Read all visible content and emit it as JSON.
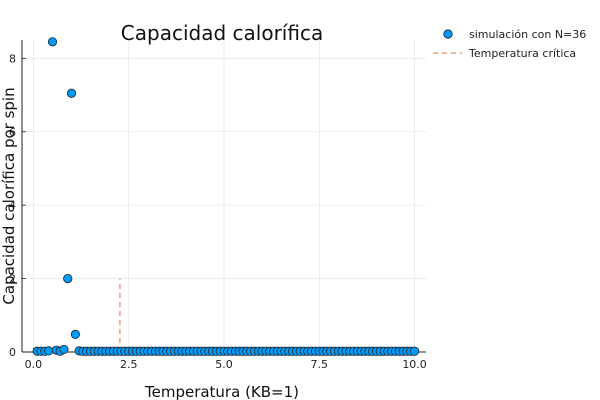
{
  "chart_data": {
    "type": "scatter",
    "title": "Capacidad calorífica",
    "xlabel": "Temperatura (KB=1)",
    "ylabel": "Capacidad calorífica por spin",
    "xlim": [
      -0.3,
      10.3
    ],
    "ylim": [
      0,
      8.5
    ],
    "xticks": [
      0,
      2.5,
      5,
      7.5,
      10
    ],
    "xtick_labels": [
      "0.0",
      "2.5",
      "5.0",
      "7.5",
      "10.0"
    ],
    "yticks": [
      0,
      2,
      4,
      6,
      8
    ],
    "ytick_labels": [
      "0",
      "2",
      "4",
      "6",
      "8"
    ],
    "grid": true,
    "legend_position": "outside-top-right",
    "series": [
      {
        "name": "simulación con N=36",
        "kind": "scatter",
        "color": "#009af9",
        "x": [
          0.1,
          0.2,
          0.3,
          0.4,
          0.5,
          0.6,
          0.7,
          0.8,
          0.9,
          1.0,
          1.1,
          1.2,
          1.3,
          1.4,
          1.5,
          1.6,
          1.7,
          1.8,
          1.9,
          2.0,
          2.1,
          2.2,
          2.3,
          2.4,
          2.5,
          2.6,
          2.7,
          2.8,
          2.9,
          3.0,
          3.1,
          3.2,
          3.3,
          3.4,
          3.5,
          3.6,
          3.7,
          3.8,
          3.9,
          4.0,
          4.1,
          4.2,
          4.3,
          4.4,
          4.5,
          4.6,
          4.7,
          4.8,
          4.9,
          5.0,
          5.1,
          5.2,
          5.3,
          5.4,
          5.5,
          5.6,
          5.7,
          5.8,
          5.9,
          6.0,
          6.1,
          6.2,
          6.3,
          6.4,
          6.5,
          6.6,
          6.7,
          6.8,
          6.9,
          7.0,
          7.1,
          7.2,
          7.3,
          7.4,
          7.5,
          7.6,
          7.7,
          7.8,
          7.9,
          8.0,
          8.1,
          8.2,
          8.3,
          8.4,
          8.5,
          8.6,
          8.7,
          8.8,
          8.9,
          9.0,
          9.1,
          9.2,
          9.3,
          9.4,
          9.5,
          9.6,
          9.7,
          9.8,
          9.9,
          10.0
        ],
        "y": [
          0.02,
          0.02,
          0.02,
          0.03,
          8.45,
          0.05,
          0.02,
          0.07,
          2.0,
          7.05,
          0.48,
          0.03,
          0.02,
          0.02,
          0.02,
          0.02,
          0.02,
          0.02,
          0.02,
          0.02,
          0.02,
          0.02,
          0.02,
          0.02,
          0.02,
          0.02,
          0.02,
          0.02,
          0.02,
          0.02,
          0.02,
          0.02,
          0.02,
          0.02,
          0.02,
          0.02,
          0.02,
          0.02,
          0.02,
          0.02,
          0.02,
          0.02,
          0.02,
          0.02,
          0.02,
          0.02,
          0.02,
          0.02,
          0.02,
          0.02,
          0.02,
          0.02,
          0.02,
          0.02,
          0.02,
          0.02,
          0.02,
          0.02,
          0.02,
          0.02,
          0.02,
          0.02,
          0.02,
          0.02,
          0.02,
          0.02,
          0.02,
          0.02,
          0.02,
          0.02,
          0.02,
          0.02,
          0.02,
          0.02,
          0.02,
          0.02,
          0.02,
          0.02,
          0.02,
          0.02,
          0.02,
          0.02,
          0.02,
          0.02,
          0.02,
          0.02,
          0.02,
          0.02,
          0.02,
          0.02,
          0.02,
          0.02,
          0.02,
          0.02,
          0.02,
          0.02,
          0.02,
          0.02,
          0.02,
          0.02
        ]
      },
      {
        "name": "Temperatura crítica",
        "kind": "dashed-vline",
        "color": "#e26f46",
        "x": [
          2.27,
          2.27
        ],
        "y": [
          0,
          2
        ]
      }
    ]
  }
}
